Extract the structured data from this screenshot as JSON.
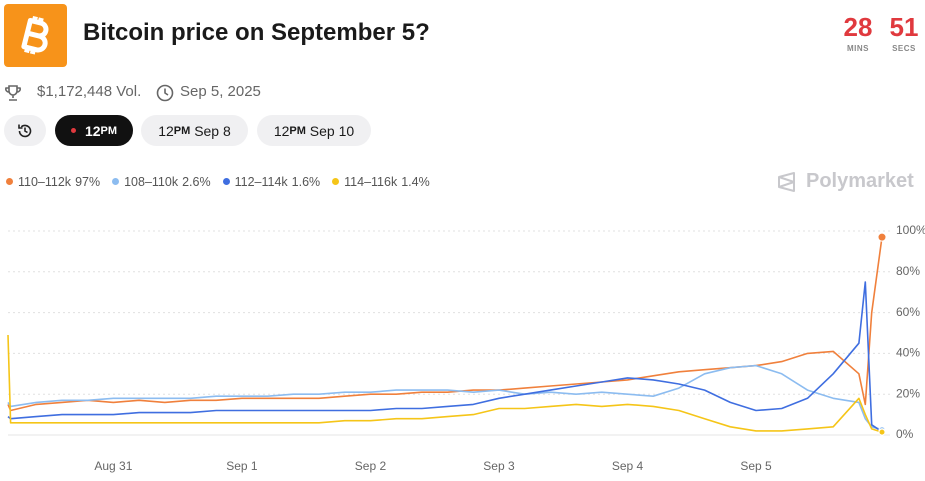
{
  "header": {
    "title": "Bitcoin price on September 5?",
    "volume": "$1,172,448 Vol.",
    "date": "Sep 5, 2025",
    "countdown": [
      {
        "value": "28",
        "unit": "MINS"
      },
      {
        "value": "51",
        "unit": "SECS"
      }
    ]
  },
  "tabs": [
    {
      "time": "12",
      "period": "PM",
      "date": ""
    },
    {
      "time": "12",
      "period": "PM",
      "date": "Sep 8"
    },
    {
      "time": "12",
      "period": "PM",
      "date": "Sep 10"
    }
  ],
  "brand": "Polymarket",
  "chart_data": {
    "type": "line",
    "x": [
      -0.82,
      -0.8,
      -0.6,
      -0.4,
      -0.2,
      0,
      0.2,
      0.4,
      0.6,
      0.8,
      1.0,
      1.2,
      1.4,
      1.6,
      1.8,
      2.0,
      2.2,
      2.4,
      2.6,
      2.8,
      3.0,
      3.2,
      3.4,
      3.6,
      3.8,
      4.0,
      4.2,
      4.4,
      4.6,
      4.8,
      5.0,
      5.2,
      5.4,
      5.6,
      5.8,
      5.85,
      5.9,
      5.98
    ],
    "series": [
      {
        "name": "110–112k",
        "legend_label": "97%",
        "color": "#f0803c",
        "values": [
          15,
          12,
          15,
          16,
          17,
          16,
          17,
          16,
          17,
          17,
          18,
          18,
          18,
          18,
          19,
          20,
          20,
          21,
          21,
          22,
          22,
          23,
          24,
          25,
          26,
          27,
          29,
          31,
          32,
          33,
          34,
          36,
          40,
          41,
          30,
          15,
          60,
          97
        ]
      },
      {
        "name": "108–110k",
        "legend_label": "2.6%",
        "color": "#8cbcf0",
        "values": [
          16,
          14,
          16,
          17,
          17,
          18,
          18,
          18,
          18,
          19,
          19,
          19,
          20,
          20,
          21,
          21,
          22,
          22,
          22,
          21,
          22,
          20,
          21,
          20,
          21,
          20,
          19,
          23,
          30,
          33,
          34,
          30,
          22,
          18,
          16,
          8,
          4,
          2.6
        ]
      },
      {
        "name": "112–114k",
        "legend_label": "1.6%",
        "color": "#3f6ee0",
        "values": [
          9,
          8,
          9,
          10,
          10,
          10,
          11,
          11,
          11,
          12,
          12,
          12,
          12,
          12,
          12,
          12,
          13,
          13,
          14,
          15,
          18,
          20,
          22,
          24,
          26,
          28,
          27,
          25,
          22,
          16,
          12,
          13,
          18,
          30,
          45,
          75,
          5,
          1.6
        ]
      },
      {
        "name": "114–116k",
        "legend_label": "1.4%",
        "color": "#f5c518",
        "values": [
          49,
          6,
          6,
          6,
          6,
          6,
          6,
          6,
          6,
          6,
          6,
          6,
          6,
          6,
          7,
          7,
          8,
          8,
          9,
          10,
          13,
          13,
          14,
          15,
          14,
          15,
          14,
          12,
          8,
          4,
          2,
          2,
          3,
          4,
          18,
          10,
          3,
          1.4
        ]
      }
    ],
    "xlim": [
      -0.82,
      5.98
    ],
    "xticks": [
      {
        "value": 0,
        "label": "Aug 31"
      },
      {
        "value": 1,
        "label": "Sep 1"
      },
      {
        "value": 2,
        "label": "Sep 2"
      },
      {
        "value": 3,
        "label": "Sep 3"
      },
      {
        "value": 4,
        "label": "Sep 4"
      },
      {
        "value": 5,
        "label": "Sep 5"
      }
    ],
    "ylim": [
      0,
      100
    ],
    "yticks": [
      {
        "value": 0,
        "label": "0%"
      },
      {
        "value": 20,
        "label": "20%"
      },
      {
        "value": 40,
        "label": "40%"
      },
      {
        "value": 60,
        "label": "60%"
      },
      {
        "value": 80,
        "label": "80%"
      },
      {
        "value": 100,
        "label": "100%"
      }
    ],
    "grid": true
  }
}
